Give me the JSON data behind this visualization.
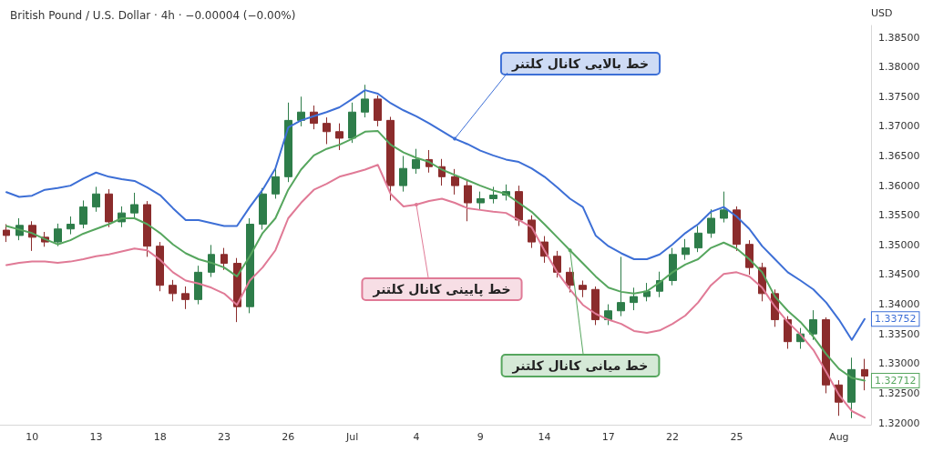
{
  "chart_data": {
    "type": "candlestick",
    "title": "British Pound / U.S. Dollar · 4h · −0.00004 (−0.00%)",
    "ylabel": "USD",
    "categories": [
      null,
      null,
      "10",
      null,
      null,
      null,
      null,
      "13",
      null,
      null,
      null,
      null,
      "18",
      null,
      null,
      null,
      null,
      "23",
      null,
      null,
      null,
      null,
      "26",
      null,
      null,
      null,
      null,
      "Jul",
      null,
      null,
      null,
      null,
      "4",
      null,
      null,
      null,
      null,
      "9",
      null,
      null,
      null,
      null,
      "14",
      null,
      null,
      null,
      null,
      "17",
      null,
      null,
      null,
      null,
      "22",
      null,
      null,
      null,
      null,
      "25",
      null,
      null,
      null,
      null,
      null,
      null,
      null,
      "Aug",
      null,
      null
    ],
    "ylim": [
      1.3197,
      1.387
    ],
    "yticks": [
      {
        "value": 1.32,
        "label": "1.32000"
      },
      {
        "value": 1.325,
        "label": "1.32500"
      },
      {
        "value": 1.33,
        "label": "1.33000"
      },
      {
        "value": 1.335,
        "label": "1.33500"
      },
      {
        "value": 1.34,
        "label": "1.34000"
      },
      {
        "value": 1.345,
        "label": "1.34500"
      },
      {
        "value": 1.35,
        "label": "1.35000"
      },
      {
        "value": 1.355,
        "label": "1.35500"
      },
      {
        "value": 1.36,
        "label": "1.36000"
      },
      {
        "value": 1.365,
        "label": "1.36500"
      },
      {
        "value": 1.37,
        "label": "1.37000"
      },
      {
        "value": 1.375,
        "label": "1.37500"
      },
      {
        "value": 1.38,
        "label": "1.38000"
      },
      {
        "value": 1.385,
        "label": "1.38500"
      }
    ],
    "grid": false,
    "marker": "none",
    "line_style": "solid",
    "series": [
      {
        "ohlc": [
          [
            1.3525,
            1.3535,
            1.3505,
            1.3516
          ],
          [
            1.3516,
            1.3545,
            1.3508,
            1.3533
          ],
          [
            1.3533,
            1.354,
            1.349,
            1.3513
          ],
          [
            1.3513,
            1.3522,
            1.3497,
            1.3505
          ],
          [
            1.3505,
            1.3536,
            1.3498,
            1.3527
          ],
          [
            1.3527,
            1.3548,
            1.3518,
            1.3535
          ],
          [
            1.3535,
            1.3575,
            1.3528,
            1.3564
          ],
          [
            1.3564,
            1.3598,
            1.3556,
            1.3586
          ],
          [
            1.3586,
            1.3594,
            1.353,
            1.3539
          ],
          [
            1.3539,
            1.3565,
            1.353,
            1.3554
          ],
          [
            1.3554,
            1.3588,
            1.3546,
            1.3568
          ],
          [
            1.3568,
            1.3574,
            1.348,
            1.3498
          ],
          [
            1.3498,
            1.3505,
            1.3422,
            1.3432
          ],
          [
            1.3432,
            1.3441,
            1.3405,
            1.3418
          ],
          [
            1.3418,
            1.343,
            1.3392,
            1.3408
          ],
          [
            1.3408,
            1.3465,
            1.34,
            1.3454
          ],
          [
            1.3454,
            1.35,
            1.3446,
            1.3484
          ],
          [
            1.3484,
            1.3495,
            1.3458,
            1.3469
          ],
          [
            1.3469,
            1.3478,
            1.337,
            1.3396
          ],
          [
            1.3396,
            1.3545,
            1.3385,
            1.3535
          ],
          [
            1.3535,
            1.3596,
            1.3526,
            1.3586
          ],
          [
            1.3586,
            1.3628,
            1.3578,
            1.3615
          ],
          [
            1.3615,
            1.374,
            1.3606,
            1.371
          ],
          [
            1.371,
            1.375,
            1.37,
            1.3724
          ],
          [
            1.3724,
            1.3735,
            1.3695,
            1.3705
          ],
          [
            1.3705,
            1.3715,
            1.367,
            1.3691
          ],
          [
            1.3691,
            1.3705,
            1.366,
            1.368
          ],
          [
            1.368,
            1.374,
            1.3672,
            1.3724
          ],
          [
            1.3724,
            1.377,
            1.3715,
            1.3746
          ],
          [
            1.3746,
            1.3752,
            1.37,
            1.371
          ],
          [
            1.371,
            1.3716,
            1.3575,
            1.36
          ],
          [
            1.36,
            1.365,
            1.359,
            1.3629
          ],
          [
            1.3629,
            1.3662,
            1.362,
            1.3644
          ],
          [
            1.3644,
            1.366,
            1.3622,
            1.3632
          ],
          [
            1.3632,
            1.3645,
            1.36,
            1.3615
          ],
          [
            1.3615,
            1.3628,
            1.3585,
            1.36
          ],
          [
            1.36,
            1.361,
            1.354,
            1.3571
          ],
          [
            1.3571,
            1.359,
            1.356,
            1.3578
          ],
          [
            1.3578,
            1.3598,
            1.357,
            1.3584
          ],
          [
            1.3584,
            1.3602,
            1.3575,
            1.359
          ],
          [
            1.359,
            1.36,
            1.3532,
            1.3542
          ],
          [
            1.3542,
            1.355,
            1.3495,
            1.3505
          ],
          [
            1.3505,
            1.3515,
            1.347,
            1.3481
          ],
          [
            1.3481,
            1.349,
            1.3445,
            1.3454
          ],
          [
            1.3454,
            1.3462,
            1.342,
            1.3432
          ],
          [
            1.3432,
            1.344,
            1.3412,
            1.3425
          ],
          [
            1.3425,
            1.343,
            1.3365,
            1.3374
          ],
          [
            1.3374,
            1.34,
            1.3365,
            1.3389
          ],
          [
            1.3389,
            1.348,
            1.338,
            1.3403
          ],
          [
            1.3403,
            1.3428,
            1.339,
            1.3413
          ],
          [
            1.3413,
            1.3436,
            1.3405,
            1.3422
          ],
          [
            1.3422,
            1.3455,
            1.3412,
            1.344
          ],
          [
            1.344,
            1.3495,
            1.3432,
            1.3484
          ],
          [
            1.3484,
            1.351,
            1.3475,
            1.3495
          ],
          [
            1.3495,
            1.3532,
            1.3488,
            1.352
          ],
          [
            1.352,
            1.356,
            1.3512,
            1.3545
          ],
          [
            1.3545,
            1.359,
            1.3538,
            1.3559
          ],
          [
            1.3559,
            1.3565,
            1.349,
            1.3501
          ],
          [
            1.3501,
            1.3508,
            1.345,
            1.3462
          ],
          [
            1.3462,
            1.347,
            1.3405,
            1.3418
          ],
          [
            1.3418,
            1.3425,
            1.3362,
            1.3374
          ],
          [
            1.3374,
            1.338,
            1.3325,
            1.3337
          ],
          [
            1.3337,
            1.336,
            1.3325,
            1.335
          ],
          [
            1.335,
            1.339,
            1.334,
            1.3374
          ],
          [
            1.3374,
            1.3378,
            1.325,
            1.3264
          ],
          [
            1.3264,
            1.3272,
            1.3212,
            1.3235
          ],
          [
            1.3235,
            1.331,
            1.3208,
            1.329
          ],
          [
            1.329,
            1.3308,
            1.3255,
            1.3279
          ]
        ],
        "colors": [
          "#8b2c2c",
          "#2e7d4a",
          "#8b2c2c",
          "#8b2c2c",
          "#2e7d4a",
          "#2e7d4a",
          "#2e7d4a",
          "#2e7d4a",
          "#8b2c2c",
          "#2e7d4a",
          "#2e7d4a",
          "#8b2c2c",
          "#8b2c2c",
          "#8b2c2c",
          "#8b2c2c",
          "#2e7d4a",
          "#2e7d4a",
          "#8b2c2c",
          "#8b2c2c",
          "#2e7d4a",
          "#2e7d4a",
          "#2e7d4a",
          "#2e7d4a",
          "#2e7d4a",
          "#8b2c2c",
          "#8b2c2c",
          "#8b2c2c",
          "#2e7d4a",
          "#2e7d4a",
          "#8b2c2c",
          "#8b2c2c",
          "#2e7d4a",
          "#2e7d4a",
          "#8b2c2c",
          "#8b2c2c",
          "#8b2c2c",
          "#8b2c2c",
          "#2e7d4a",
          "#2e7d4a",
          "#2e7d4a",
          "#8b2c2c",
          "#8b2c2c",
          "#8b2c2c",
          "#8b2c2c",
          "#8b2c2c",
          "#8b2c2c",
          "#8b2c2c",
          "#2e7d4a",
          "#2e7d4a",
          "#2e7d4a",
          "#2e7d4a",
          "#2e7d4a",
          "#2e7d4a",
          "#2e7d4a",
          "#2e7d4a",
          "#2e7d4a",
          "#2e7d4a",
          "#8b2c2c",
          "#8b2c2c",
          "#8b2c2c",
          "#8b2c2c",
          "#8b2c2c",
          "#2e7d4a",
          "#2e7d4a",
          "#8b2c2c",
          "#8b2c2c",
          "#2e7d4a",
          "#8b2c2c"
        ]
      },
      {
        "type": "line",
        "name": "خط بالایی کانال کلتنر",
        "color": "#3d6fd6",
        "values": [
          1.3589,
          1.3581,
          1.3583,
          1.3593,
          1.3596,
          1.36,
          1.3612,
          1.3622,
          1.3615,
          1.3611,
          1.3608,
          1.3597,
          1.3584,
          1.3562,
          1.3542,
          1.3542,
          1.3537,
          1.3532,
          1.3532,
          1.3564,
          1.3593,
          1.3629,
          1.3698,
          1.371,
          1.3717,
          1.3724,
          1.3732,
          1.3746,
          1.3761,
          1.3755,
          1.3739,
          1.3727,
          1.3717,
          1.3705,
          1.3692,
          1.3679,
          1.367,
          1.3659,
          1.3651,
          1.3644,
          1.364,
          1.3629,
          1.3615,
          1.3597,
          1.3578,
          1.3564,
          1.3516,
          1.3498,
          1.3486,
          1.3476,
          1.3476,
          1.3484,
          1.3501,
          1.352,
          1.3535,
          1.3556,
          1.3564,
          1.3548,
          1.3527,
          1.3498,
          1.3476,
          1.3454,
          1.344,
          1.3425,
          1.3403,
          1.3374,
          1.334,
          1.33752
        ],
        "value_labels": [
          null,
          null,
          null,
          null,
          null,
          null,
          null,
          null,
          null,
          null,
          null,
          null,
          null,
          null,
          null,
          null,
          null,
          null,
          null,
          null,
          null,
          null,
          null,
          null,
          null,
          null,
          null,
          null,
          null,
          null,
          null,
          null,
          null,
          null,
          null,
          null,
          null,
          null,
          null,
          null,
          null,
          null,
          null,
          null,
          null,
          null,
          null,
          null,
          null,
          null,
          null,
          null,
          null,
          null,
          null,
          null,
          null,
          null,
          null,
          null,
          null,
          null,
          null,
          null,
          null,
          null,
          null,
          "1.33752"
        ]
      },
      {
        "type": "line",
        "name": "خط میانی کانال کلتنر",
        "color": "#56a65e",
        "values": [
          1.3532,
          1.3526,
          1.352,
          1.351,
          1.3501,
          1.3508,
          1.3519,
          1.3527,
          1.3535,
          1.3545,
          1.3545,
          1.3535,
          1.352,
          1.3501,
          1.3486,
          1.3476,
          1.347,
          1.3462,
          1.3447,
          1.3481,
          1.352,
          1.3545,
          1.3593,
          1.3627,
          1.3651,
          1.3662,
          1.3669,
          1.3679,
          1.3691,
          1.3692,
          1.3669,
          1.3656,
          1.3647,
          1.364,
          1.3627,
          1.3618,
          1.3609,
          1.36,
          1.3592,
          1.3586,
          1.3571,
          1.3556,
          1.3535,
          1.3513,
          1.3491,
          1.3469,
          1.3447,
          1.3428,
          1.3421,
          1.3418,
          1.3422,
          1.3437,
          1.3454,
          1.3467,
          1.3476,
          1.3495,
          1.3504,
          1.3494,
          1.3476,
          1.3454,
          1.3413,
          1.3389,
          1.337,
          1.3345,
          1.3316,
          1.3291,
          1.3276,
          1.32712
        ],
        "value_labels": [
          null,
          null,
          null,
          null,
          null,
          null,
          null,
          null,
          null,
          null,
          null,
          null,
          null,
          null,
          null,
          null,
          null,
          null,
          null,
          null,
          null,
          null,
          null,
          null,
          null,
          null,
          null,
          null,
          null,
          null,
          null,
          null,
          null,
          null,
          null,
          null,
          null,
          null,
          null,
          null,
          null,
          null,
          null,
          null,
          null,
          null,
          null,
          null,
          null,
          null,
          null,
          null,
          null,
          null,
          null,
          null,
          null,
          null,
          null,
          null,
          null,
          null,
          null,
          null,
          null,
          null,
          null,
          "1.32712"
        ]
      },
      {
        "type": "line",
        "name": "خط پایینی کانال کلتنر",
        "color": "#e07a96",
        "values": [
          1.3466,
          1.347,
          1.3472,
          1.3472,
          1.347,
          1.3472,
          1.3476,
          1.3481,
          1.3484,
          1.3489,
          1.3494,
          1.3491,
          1.3475,
          1.3454,
          1.344,
          1.3435,
          1.3428,
          1.3418,
          1.3399,
          1.344,
          1.3462,
          1.3491,
          1.3545,
          1.3571,
          1.3593,
          1.3603,
          1.3615,
          1.3621,
          1.3627,
          1.3635,
          1.3586,
          1.3565,
          1.3568,
          1.3574,
          1.3578,
          1.3571,
          1.3562,
          1.3559,
          1.3556,
          1.3554,
          1.3542,
          1.353,
          1.3491,
          1.3454,
          1.3425,
          1.3399,
          1.3384,
          1.3374,
          1.3367,
          1.3355,
          1.3352,
          1.3356,
          1.3367,
          1.3381,
          1.3403,
          1.3432,
          1.3451,
          1.3454,
          1.3447,
          1.3428,
          1.3396,
          1.337,
          1.3349,
          1.3323,
          1.3286,
          1.3247,
          1.322,
          1.3209
        ]
      }
    ]
  }
}
